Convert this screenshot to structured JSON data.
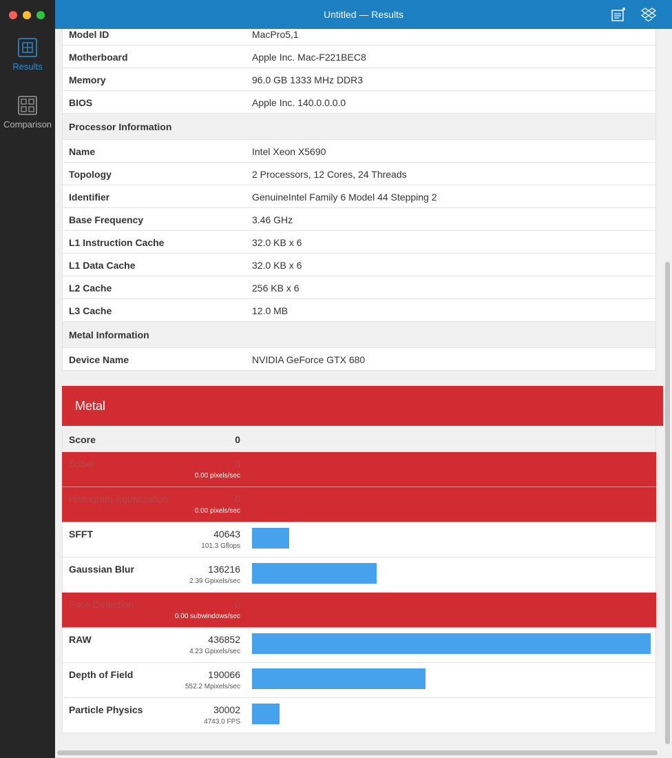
{
  "window": {
    "title": "Untitled — Results"
  },
  "sidebar": {
    "items": [
      {
        "label": "Results",
        "icon": "results-icon",
        "active": true
      },
      {
        "label": "Comparison",
        "icon": "comparison-icon",
        "active": false
      }
    ]
  },
  "toolbar": {
    "share_icon": "share-icon",
    "dropbox_icon": "dropbox-icon"
  },
  "system_info": {
    "rows": [
      {
        "key": "Model ID",
        "value": "MacPro5,1"
      },
      {
        "key": "Motherboard",
        "value": "Apple Inc. Mac-F221BEC8"
      },
      {
        "key": "Memory",
        "value": "96.0 GB 1333 MHz DDR3"
      },
      {
        "key": "BIOS",
        "value": "Apple Inc. 140.0.0.0.0"
      }
    ],
    "processor_header": "Processor Information",
    "processor_rows": [
      {
        "key": "Name",
        "value": "Intel Xeon X5690"
      },
      {
        "key": "Topology",
        "value": "2 Processors, 12 Cores, 24 Threads"
      },
      {
        "key": "Identifier",
        "value": "GenuineIntel Family 6 Model 44 Stepping 2"
      },
      {
        "key": "Base Frequency",
        "value": "3.46 GHz"
      },
      {
        "key": "L1 Instruction Cache",
        "value": "32.0 KB x 6"
      },
      {
        "key": "L1 Data Cache",
        "value": "32.0 KB x 6"
      },
      {
        "key": "L2 Cache",
        "value": "256 KB x 6"
      },
      {
        "key": "L3 Cache",
        "value": "12.0 MB"
      }
    ],
    "metal_header": "Metal Information",
    "metal_rows": [
      {
        "key": "Device Name",
        "value": "NVIDIA GeForce GTX 680"
      }
    ]
  },
  "metal": {
    "title": "Metal",
    "score_label": "Score",
    "score": "0",
    "max_score": 436852,
    "benchmarks": [
      {
        "name": "Sobel",
        "score": "0",
        "unit": "0.00 pixels/sec",
        "failed": true,
        "value": 0
      },
      {
        "name": "Histogram Equalization",
        "score": "0",
        "unit": "0.00 pixels/sec",
        "failed": true,
        "value": 0
      },
      {
        "name": "SFFT",
        "score": "40643",
        "unit": "101.3 Gflops",
        "failed": false,
        "value": 40643
      },
      {
        "name": "Gaussian Blur",
        "score": "136216",
        "unit": "2.39 Gpixels/sec",
        "failed": false,
        "value": 136216
      },
      {
        "name": "Face Detection",
        "score": "0",
        "unit": "0.00 subwindows/sec",
        "failed": true,
        "value": 0
      },
      {
        "name": "RAW",
        "score": "436852",
        "unit": "4.23 Gpixels/sec",
        "failed": false,
        "value": 436852
      },
      {
        "name": "Depth of Field",
        "score": "190066",
        "unit": "552.2 Mpixels/sec",
        "failed": false,
        "value": 190066
      },
      {
        "name": "Particle Physics",
        "score": "30002",
        "unit": "4743.0 FPS",
        "failed": false,
        "value": 30002
      }
    ]
  }
}
